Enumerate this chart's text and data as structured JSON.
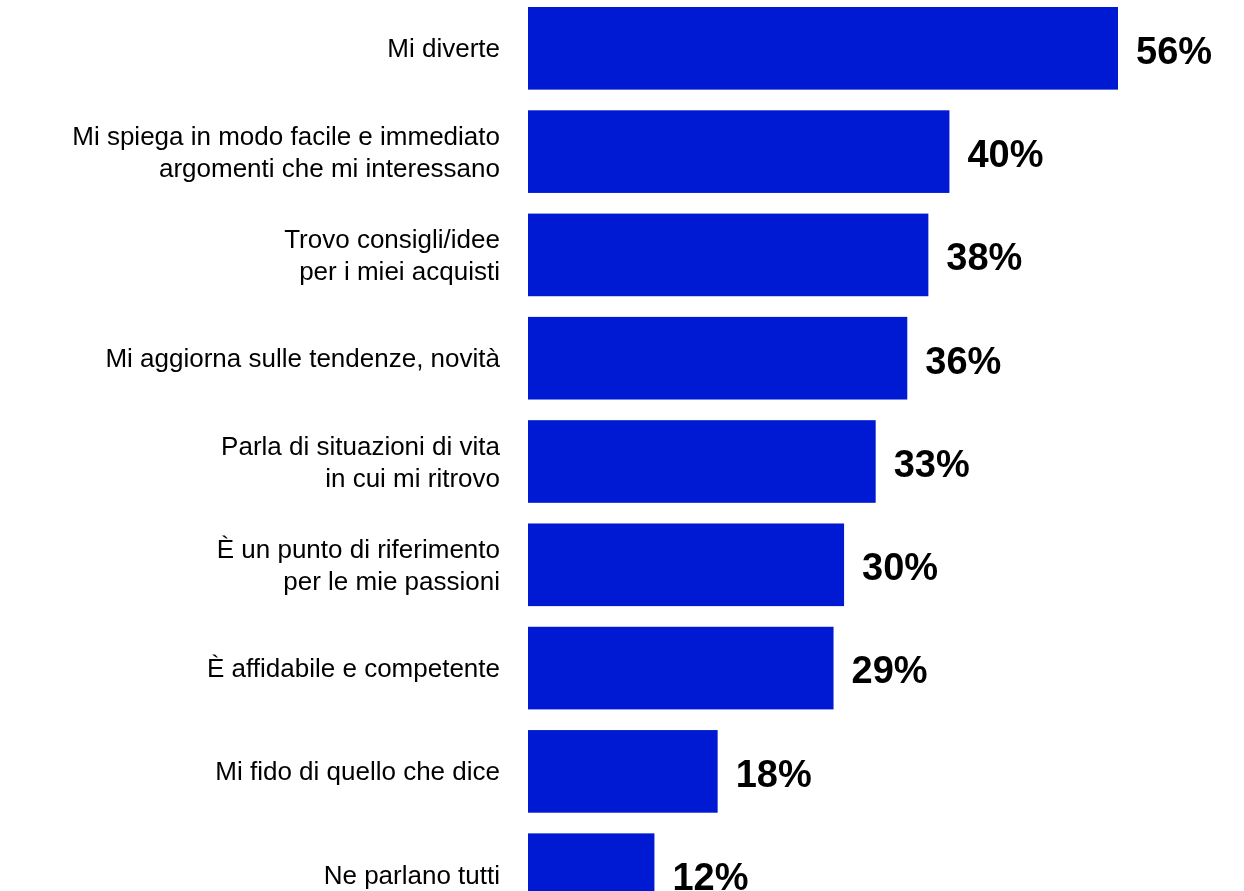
{
  "chart_data": {
    "type": "bar",
    "orientation": "horizontal",
    "categories": [
      "Mi diverte",
      "Mi spiega in modo facile e immediato\nargomenti che mi interessano",
      "Trovo consigli/idee\nper i miei acquisti",
      "Mi aggiorna sulle tendenze, novità",
      "Parla di situazioni di vita\nin cui mi ritrovo",
      "È un punto di riferimento\nper le mie passioni",
      "È affidabile e competente",
      "Mi fido di quello che dice",
      "Ne parlano tutti"
    ],
    "values": [
      56,
      40,
      38,
      36,
      33,
      30,
      29,
      18,
      12
    ],
    "value_labels": [
      "56%",
      "40%",
      "38%",
      "36%",
      "33%",
      "30%",
      "29%",
      "18%",
      "12%"
    ],
    "color": "#0019d2"
  }
}
